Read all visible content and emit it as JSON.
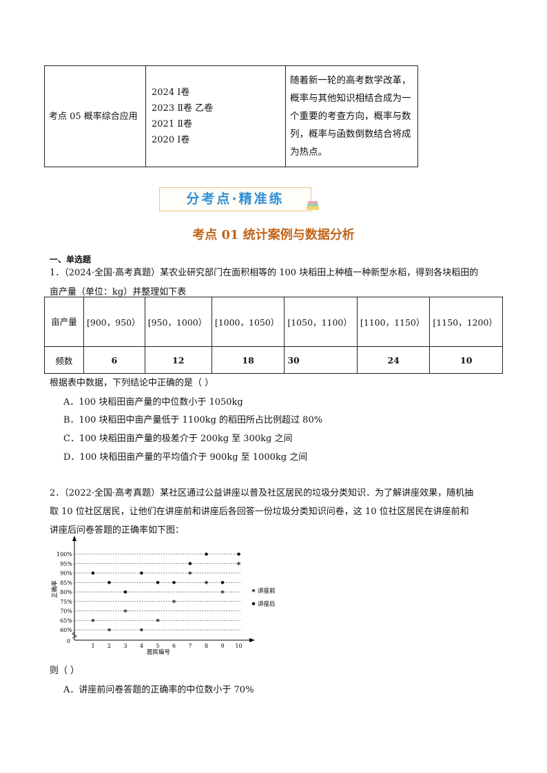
{
  "top_table": {
    "topic": "考点 05  概率综合应用",
    "years": [
      "2024  Ⅰ卷",
      "2023  Ⅱ卷  乙卷",
      "2021  Ⅱ卷",
      "2020  Ⅰ卷"
    ],
    "note": "随着新一轮的高考数学改革，概率与其他知识相结合成为一个重要的考查方向，概率与数列，概率与函数倒数结合将成为热点。"
  },
  "banner": "分考点·精准练",
  "section_title": "考点 01    统计案例与数据分析",
  "part_heading": "一、单选题",
  "q1": {
    "stem_line1": "1．（2024·全国·高考真题）某农业研究部门在面积相等的 100 块稻田上种植一种新型水稻，得到各块稻田的",
    "stem_line2": "亩产量（单位：kg）并整理如下表",
    "table": {
      "row_headers": [
        "亩产量",
        "频数"
      ],
      "intervals": [
        "[900，950）",
        "[950，1000）",
        "[1000，1050）",
        "[1050，1100）",
        "[1100，1150）",
        "[1150，1200）"
      ],
      "counts": [
        "6",
        "12",
        "18",
        "30",
        "24",
        "10"
      ]
    },
    "prompt": "根据表中数据，下列结论中正确的是（    ）",
    "options": [
      "A．100 块稻田亩产量的中位数小于 1050kg",
      "B．100 块稻田中亩产量低于 1100kg 的稻田所占比例超过 80%",
      "C．100 块稻田亩产量的极差介于 200kg 至 300kg 之间",
      "D．100 块稻田亩产量的平均值介于 900kg 至 1000kg 之间"
    ]
  },
  "q2": {
    "stem_line1": "2．（2022·全国·高考真题）某社区通过公益讲座以普及社区居民的垃圾分类知识．为了解讲座效果，随机抽",
    "stem_line2": "取 10 位社区居民，让他们在讲座前和讲座后各回答一份垃圾分类知识问卷，这 10 位社区居民在讲座前和",
    "stem_line3": "讲座后问卷答题的正确率如下图：",
    "prompt": "则（    ）",
    "options": [
      "A．讲座前问卷答题的正确率的中位数小于 70%"
    ]
  },
  "chart_data": {
    "type": "scatter",
    "xlabel": "居民编号",
    "ylabel": "正确率",
    "x": [
      1,
      2,
      3,
      4,
      5,
      6,
      7,
      8,
      9,
      10
    ],
    "x_ticks": [
      "1",
      "2",
      "3",
      "4",
      "5",
      "6",
      "7",
      "8",
      "9",
      "10"
    ],
    "y_ticks": [
      "0",
      "60%",
      "65%",
      "70%",
      "75%",
      "80%",
      "85%",
      "90%",
      "95%",
      "100%"
    ],
    "ylim": [
      60,
      100
    ],
    "y_axis_break": true,
    "grid": "horizontal dotted",
    "legend": "right",
    "series": [
      {
        "name": "讲座前",
        "marker": "asterisk",
        "values": [
          65,
          60,
          70,
          60,
          65,
          75,
          90,
          85,
          80,
          95
        ]
      },
      {
        "name": "讲座后",
        "marker": "dot",
        "values": [
          90,
          85,
          80,
          90,
          85,
          85,
          95,
          100,
          85,
          100
        ]
      }
    ]
  }
}
